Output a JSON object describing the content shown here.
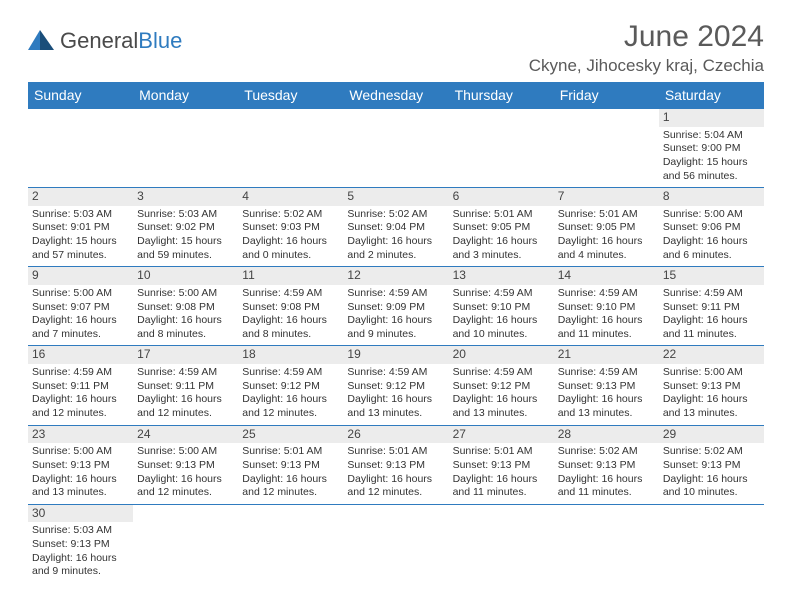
{
  "logo": {
    "general": "General",
    "blue": "Blue"
  },
  "title": "June 2024",
  "location": "Ckyne, Jihocesky kraj, Czechia",
  "colors": {
    "header_bg": "#2f7bbf",
    "header_text": "#ffffff",
    "daynum_bg": "#ececec",
    "border": "#2f7bbf",
    "text": "#333333",
    "title_text": "#5a5a5a"
  },
  "weekdays": [
    "Sunday",
    "Monday",
    "Tuesday",
    "Wednesday",
    "Thursday",
    "Friday",
    "Saturday"
  ],
  "weeks": [
    [
      null,
      null,
      null,
      null,
      null,
      null,
      {
        "n": "1",
        "sr": "Sunrise: 5:04 AM",
        "ss": "Sunset: 9:00 PM",
        "dl1": "Daylight: 15 hours",
        "dl2": "and 56 minutes."
      }
    ],
    [
      {
        "n": "2",
        "sr": "Sunrise: 5:03 AM",
        "ss": "Sunset: 9:01 PM",
        "dl1": "Daylight: 15 hours",
        "dl2": "and 57 minutes."
      },
      {
        "n": "3",
        "sr": "Sunrise: 5:03 AM",
        "ss": "Sunset: 9:02 PM",
        "dl1": "Daylight: 15 hours",
        "dl2": "and 59 minutes."
      },
      {
        "n": "4",
        "sr": "Sunrise: 5:02 AM",
        "ss": "Sunset: 9:03 PM",
        "dl1": "Daylight: 16 hours",
        "dl2": "and 0 minutes."
      },
      {
        "n": "5",
        "sr": "Sunrise: 5:02 AM",
        "ss": "Sunset: 9:04 PM",
        "dl1": "Daylight: 16 hours",
        "dl2": "and 2 minutes."
      },
      {
        "n": "6",
        "sr": "Sunrise: 5:01 AM",
        "ss": "Sunset: 9:05 PM",
        "dl1": "Daylight: 16 hours",
        "dl2": "and 3 minutes."
      },
      {
        "n": "7",
        "sr": "Sunrise: 5:01 AM",
        "ss": "Sunset: 9:05 PM",
        "dl1": "Daylight: 16 hours",
        "dl2": "and 4 minutes."
      },
      {
        "n": "8",
        "sr": "Sunrise: 5:00 AM",
        "ss": "Sunset: 9:06 PM",
        "dl1": "Daylight: 16 hours",
        "dl2": "and 6 minutes."
      }
    ],
    [
      {
        "n": "9",
        "sr": "Sunrise: 5:00 AM",
        "ss": "Sunset: 9:07 PM",
        "dl1": "Daylight: 16 hours",
        "dl2": "and 7 minutes."
      },
      {
        "n": "10",
        "sr": "Sunrise: 5:00 AM",
        "ss": "Sunset: 9:08 PM",
        "dl1": "Daylight: 16 hours",
        "dl2": "and 8 minutes."
      },
      {
        "n": "11",
        "sr": "Sunrise: 4:59 AM",
        "ss": "Sunset: 9:08 PM",
        "dl1": "Daylight: 16 hours",
        "dl2": "and 8 minutes."
      },
      {
        "n": "12",
        "sr": "Sunrise: 4:59 AM",
        "ss": "Sunset: 9:09 PM",
        "dl1": "Daylight: 16 hours",
        "dl2": "and 9 minutes."
      },
      {
        "n": "13",
        "sr": "Sunrise: 4:59 AM",
        "ss": "Sunset: 9:10 PM",
        "dl1": "Daylight: 16 hours",
        "dl2": "and 10 minutes."
      },
      {
        "n": "14",
        "sr": "Sunrise: 4:59 AM",
        "ss": "Sunset: 9:10 PM",
        "dl1": "Daylight: 16 hours",
        "dl2": "and 11 minutes."
      },
      {
        "n": "15",
        "sr": "Sunrise: 4:59 AM",
        "ss": "Sunset: 9:11 PM",
        "dl1": "Daylight: 16 hours",
        "dl2": "and 11 minutes."
      }
    ],
    [
      {
        "n": "16",
        "sr": "Sunrise: 4:59 AM",
        "ss": "Sunset: 9:11 PM",
        "dl1": "Daylight: 16 hours",
        "dl2": "and 12 minutes."
      },
      {
        "n": "17",
        "sr": "Sunrise: 4:59 AM",
        "ss": "Sunset: 9:11 PM",
        "dl1": "Daylight: 16 hours",
        "dl2": "and 12 minutes."
      },
      {
        "n": "18",
        "sr": "Sunrise: 4:59 AM",
        "ss": "Sunset: 9:12 PM",
        "dl1": "Daylight: 16 hours",
        "dl2": "and 12 minutes."
      },
      {
        "n": "19",
        "sr": "Sunrise: 4:59 AM",
        "ss": "Sunset: 9:12 PM",
        "dl1": "Daylight: 16 hours",
        "dl2": "and 13 minutes."
      },
      {
        "n": "20",
        "sr": "Sunrise: 4:59 AM",
        "ss": "Sunset: 9:12 PM",
        "dl1": "Daylight: 16 hours",
        "dl2": "and 13 minutes."
      },
      {
        "n": "21",
        "sr": "Sunrise: 4:59 AM",
        "ss": "Sunset: 9:13 PM",
        "dl1": "Daylight: 16 hours",
        "dl2": "and 13 minutes."
      },
      {
        "n": "22",
        "sr": "Sunrise: 5:00 AM",
        "ss": "Sunset: 9:13 PM",
        "dl1": "Daylight: 16 hours",
        "dl2": "and 13 minutes."
      }
    ],
    [
      {
        "n": "23",
        "sr": "Sunrise: 5:00 AM",
        "ss": "Sunset: 9:13 PM",
        "dl1": "Daylight: 16 hours",
        "dl2": "and 13 minutes."
      },
      {
        "n": "24",
        "sr": "Sunrise: 5:00 AM",
        "ss": "Sunset: 9:13 PM",
        "dl1": "Daylight: 16 hours",
        "dl2": "and 12 minutes."
      },
      {
        "n": "25",
        "sr": "Sunrise: 5:01 AM",
        "ss": "Sunset: 9:13 PM",
        "dl1": "Daylight: 16 hours",
        "dl2": "and 12 minutes."
      },
      {
        "n": "26",
        "sr": "Sunrise: 5:01 AM",
        "ss": "Sunset: 9:13 PM",
        "dl1": "Daylight: 16 hours",
        "dl2": "and 12 minutes."
      },
      {
        "n": "27",
        "sr": "Sunrise: 5:01 AM",
        "ss": "Sunset: 9:13 PM",
        "dl1": "Daylight: 16 hours",
        "dl2": "and 11 minutes."
      },
      {
        "n": "28",
        "sr": "Sunrise: 5:02 AM",
        "ss": "Sunset: 9:13 PM",
        "dl1": "Daylight: 16 hours",
        "dl2": "and 11 minutes."
      },
      {
        "n": "29",
        "sr": "Sunrise: 5:02 AM",
        "ss": "Sunset: 9:13 PM",
        "dl1": "Daylight: 16 hours",
        "dl2": "and 10 minutes."
      }
    ],
    [
      {
        "n": "30",
        "sr": "Sunrise: 5:03 AM",
        "ss": "Sunset: 9:13 PM",
        "dl1": "Daylight: 16 hours",
        "dl2": "and 9 minutes."
      },
      null,
      null,
      null,
      null,
      null,
      null
    ]
  ]
}
